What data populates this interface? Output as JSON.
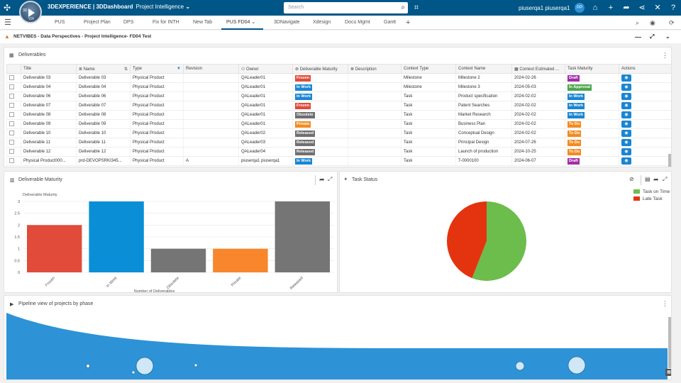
{
  "app": {
    "brand": "3DEXPERIENCE | 3DDashboard",
    "dashboard": "Project Intelligence",
    "compass_label": "3D",
    "compass_version": "V,R"
  },
  "search": {
    "placeholder": "Search"
  },
  "user": {
    "name": "piuserqa1 piuserqa1",
    "initials": "PP"
  },
  "tabs": [
    "PUS",
    "Project Plan",
    "DPS",
    "Fix for INTH",
    "New Tab",
    "PUS FD04",
    "3DNavigate",
    "Xdesign",
    "Docu Mgmt",
    "Gantt"
  ],
  "active_tab": "PUS FD04",
  "breadcrumb": "NETVIBES - Data Perspectives - Project Intelligence- FD04 Test",
  "deliverables": {
    "title": "Deliverables",
    "columns": [
      "Title",
      "Name",
      "Type",
      "Revision",
      "Owner",
      "Deliverable Maturity",
      "Description",
      "Context Type",
      "Context Name",
      "Context Estimated ...",
      "Task Maturity",
      "Actions"
    ],
    "rows": [
      {
        "title": "Deliverable 03",
        "name": "Deliverable 03",
        "type": "Physical Product",
        "rev": "",
        "owner": "QALeader01",
        "maturity": "Frozen",
        "desc": "",
        "ctype": "Milestone",
        "cname": "Milestone 2",
        "cdate": "2024-02-26",
        "task": "Draft"
      },
      {
        "title": "Deliverable 04",
        "name": "Deliverable 04",
        "type": "Physical Product",
        "rev": "",
        "owner": "QALeader01",
        "maturity": "In Work",
        "desc": "",
        "ctype": "Milestone",
        "cname": "Milestone 3",
        "cdate": "2024-05-03",
        "task": "In Approval"
      },
      {
        "title": "Deliverable 06",
        "name": "Deliverable 06",
        "type": "Physical Product",
        "rev": "",
        "owner": "QALeader01",
        "maturity": "In Work",
        "desc": "",
        "ctype": "Task",
        "cname": "Product specification",
        "cdate": "2024-02-02",
        "task": "In Work"
      },
      {
        "title": "Deliverable 07",
        "name": "Deliverable 07",
        "type": "Physical Product",
        "rev": "",
        "owner": "QALeader01",
        "maturity": "Frozen",
        "desc": "",
        "ctype": "Task",
        "cname": "Patent Searches",
        "cdate": "2024-02-02",
        "task": "In Work"
      },
      {
        "title": "Deliverable 08",
        "name": "Deliverable 08",
        "type": "Physical Product",
        "rev": "",
        "owner": "QALeader01",
        "maturity": "Obsolete",
        "desc": "",
        "ctype": "Task",
        "cname": "Market Research",
        "cdate": "2024-02-02",
        "task": "In Work"
      },
      {
        "title": "Deliverable 09",
        "name": "Deliverable 09",
        "type": "Physical Product",
        "rev": "",
        "owner": "QALeader01",
        "maturity": "Private",
        "desc": "",
        "ctype": "Task",
        "cname": "Business Plan",
        "cdate": "2024-02-02",
        "task": "To Do"
      },
      {
        "title": "Deliverable 10",
        "name": "Deliverable 10",
        "type": "Physical Product",
        "rev": "",
        "owner": "QALeader02",
        "maturity": "Released",
        "desc": "",
        "ctype": "Task",
        "cname": "Conceptual Design",
        "cdate": "2024-02-02",
        "task": "To Do"
      },
      {
        "title": "Deliverable 11",
        "name": "Deliverable 11",
        "type": "Physical Product",
        "rev": "",
        "owner": "QALeader03",
        "maturity": "Released",
        "desc": "",
        "ctype": "Task",
        "cname": "Principal Design",
        "cdate": "2024-07-26",
        "task": "To Do"
      },
      {
        "title": "Deliverable 12",
        "name": "Deliverable 12",
        "type": "Physical Product",
        "rev": "",
        "owner": "QALeader04",
        "maturity": "Released",
        "desc": "",
        "ctype": "Task",
        "cname": "Launch of production",
        "cdate": "2024-10-25",
        "task": "To Do"
      },
      {
        "title": "Physical Product000...",
        "name": "prd-DEVOPSRKI345...",
        "type": "Physical Product",
        "rev": "A",
        "owner": "piuserqa1 piuserqa1",
        "maturity": "In Work",
        "desc": "",
        "ctype": "Task",
        "cname": "T-0000100",
        "cdate": "2024-06-07",
        "task": "Draft"
      }
    ]
  },
  "badge_colors": {
    "Frozen": "#e04b3a",
    "In Work": "#1a85d1",
    "Obsolete": "#6f6f6f",
    "Private": "#f28b22",
    "Released": "#6f6f6f",
    "Draft": "#a12ea8",
    "In Approval": "#4ca64c",
    "To Do": "#f28b22"
  },
  "maturity_widget": {
    "title": "Deliverable Maturity"
  },
  "task_widget": {
    "title": "Task Status"
  },
  "pipeline_widget": {
    "title": "Pipeline view of projects by phase"
  },
  "chart_data": [
    {
      "type": "bar",
      "title": "Deliverable Maturity",
      "categories": [
        "Frozen",
        "In Work",
        "Obsolete",
        "Private",
        "Released"
      ],
      "values": [
        2,
        3,
        1,
        1,
        3
      ],
      "colors": [
        "#e04b3a",
        "#0a8fd6",
        "#757575",
        "#f7862c",
        "#757575"
      ],
      "xlabel": "Number of Deliverables",
      "ylabel": "",
      "ylim": [
        0,
        3
      ],
      "yticks": [
        0,
        0.5,
        1,
        1.5,
        2,
        2.5,
        3
      ],
      "grid": true
    },
    {
      "type": "pie",
      "title": "",
      "categories": [
        "Task on Time",
        "Late Task"
      ],
      "values": [
        56,
        44
      ],
      "colors": [
        "#6cbd4c",
        "#e3340f"
      ],
      "legend": "top-right"
    }
  ]
}
